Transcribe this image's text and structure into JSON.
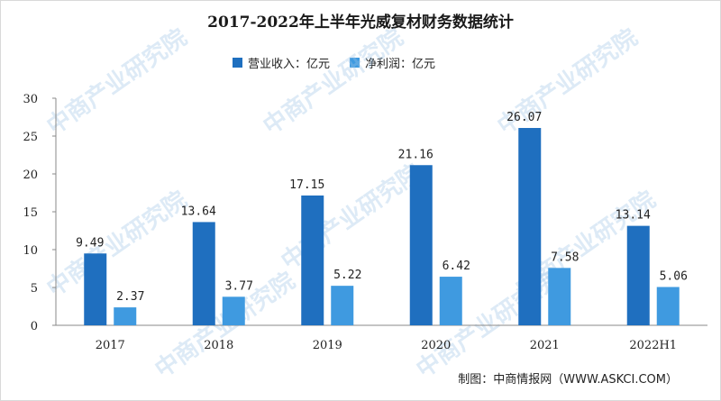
{
  "title": "2017-2022年上半年光威复材财务数据统计",
  "source": "制图：中商情报网（WWW.ASKCI.COM）",
  "watermark": "中商产业研究院",
  "colors": {
    "revenue": "#1f6fbf",
    "profit": "#3f9ae0",
    "axis": "#888888"
  },
  "chart_data": {
    "type": "bar",
    "categories": [
      "2017",
      "2018",
      "2019",
      "2020",
      "2021",
      "2022H1"
    ],
    "series": [
      {
        "name": "营业收入：亿元",
        "values": [
          9.49,
          13.64,
          17.15,
          21.16,
          26.07,
          13.14
        ]
      },
      {
        "name": "净利润：亿元",
        "values": [
          2.37,
          3.77,
          5.22,
          6.42,
          7.58,
          5.06
        ]
      }
    ],
    "ylim": [
      0,
      30
    ],
    "yticks": [
      0,
      5,
      10,
      15,
      20,
      25,
      30
    ],
    "grid": false,
    "legend": "top-center"
  }
}
